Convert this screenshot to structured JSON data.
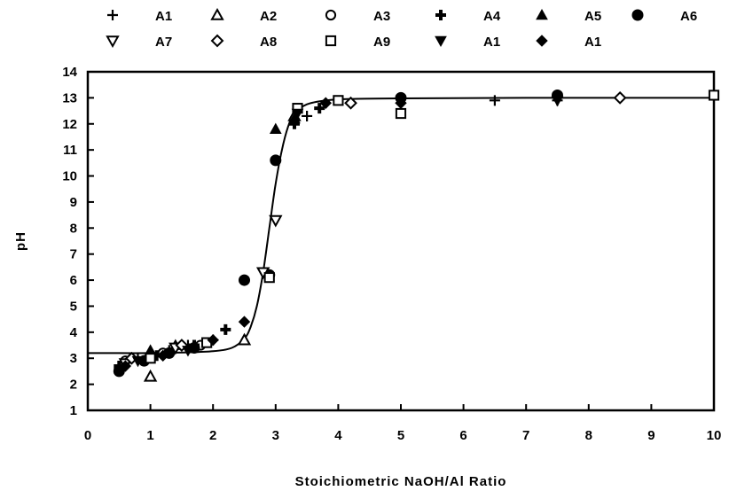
{
  "chart_data": {
    "type": "scatter",
    "title": "",
    "xlabel": "Stoichiometric NaOH/Al Ratio",
    "ylabel": "pH",
    "xlim": [
      0,
      10
    ],
    "ylim": [
      1,
      14
    ],
    "xticks": [
      0,
      1,
      2,
      3,
      4,
      5,
      6,
      7,
      8,
      9,
      10
    ],
    "yticks": [
      1,
      2,
      3,
      4,
      5,
      6,
      7,
      8,
      9,
      10,
      11,
      12,
      13,
      14
    ],
    "grid": false,
    "legend_position": "top",
    "series": [
      {
        "name": "A1",
        "marker": "plus",
        "points": [
          [
            0.5,
            2.6
          ],
          [
            0.8,
            3.0
          ],
          [
            1.0,
            3.1
          ],
          [
            1.3,
            3.3
          ],
          [
            1.6,
            3.5
          ],
          [
            2.0,
            3.7
          ],
          [
            3.5,
            12.3
          ],
          [
            6.5,
            12.9
          ],
          [
            7.5,
            12.9
          ]
        ]
      },
      {
        "name": "A2",
        "marker": "triangle-open",
        "points": [
          [
            1.0,
            2.3
          ],
          [
            2.5,
            3.7
          ],
          [
            3.3,
            12.3
          ]
        ]
      },
      {
        "name": "A3",
        "marker": "circle-open",
        "points": [
          [
            0.6,
            2.9
          ],
          [
            1.2,
            3.2
          ],
          [
            1.8,
            3.5
          ]
        ]
      },
      {
        "name": "A4",
        "marker": "plus-bold",
        "points": [
          [
            0.5,
            2.7
          ],
          [
            1.1,
            3.1
          ],
          [
            1.7,
            3.5
          ],
          [
            2.2,
            4.1
          ],
          [
            3.3,
            12.0
          ],
          [
            3.7,
            12.6
          ]
        ]
      },
      {
        "name": "A5",
        "marker": "triangle-filled",
        "points": [
          [
            1.0,
            3.3
          ],
          [
            1.4,
            3.5
          ],
          [
            3.0,
            11.8
          ],
          [
            3.3,
            12.2
          ]
        ]
      },
      {
        "name": "A6",
        "marker": "circle-filled",
        "points": [
          [
            0.5,
            2.5
          ],
          [
            0.9,
            2.9
          ],
          [
            1.3,
            3.2
          ],
          [
            1.7,
            3.4
          ],
          [
            2.5,
            6.0
          ],
          [
            2.9,
            6.2
          ],
          [
            3.0,
            10.6
          ],
          [
            5.0,
            13.0
          ],
          [
            7.5,
            13.1
          ]
        ]
      },
      {
        "name": "A7",
        "marker": "triangle-down-open",
        "points": [
          [
            0.6,
            2.8
          ],
          [
            1.4,
            3.4
          ],
          [
            2.8,
            6.3
          ],
          [
            3.0,
            8.3
          ]
        ]
      },
      {
        "name": "A8",
        "marker": "diamond-open",
        "points": [
          [
            0.7,
            3.0
          ],
          [
            1.5,
            3.5
          ],
          [
            4.2,
            12.8
          ],
          [
            8.5,
            13.0
          ]
        ]
      },
      {
        "name": "A9",
        "marker": "square-open",
        "points": [
          [
            1.0,
            3.0
          ],
          [
            1.9,
            3.6
          ],
          [
            2.9,
            6.1
          ],
          [
            3.35,
            12.6
          ],
          [
            4.0,
            12.9
          ],
          [
            5.0,
            12.4
          ],
          [
            10.0,
            13.1
          ]
        ]
      },
      {
        "name": "A1",
        "marker": "triangle-down-filled",
        "points": [
          [
            0.8,
            2.9
          ],
          [
            1.6,
            3.3
          ],
          [
            3.35,
            12.4
          ],
          [
            7.5,
            12.9
          ]
        ]
      },
      {
        "name": "A1",
        "marker": "diamond-filled",
        "points": [
          [
            0.6,
            2.7
          ],
          [
            1.2,
            3.1
          ],
          [
            2.0,
            3.7
          ],
          [
            2.5,
            4.4
          ],
          [
            3.8,
            12.8
          ],
          [
            5.0,
            12.8
          ]
        ]
      }
    ],
    "fit_curve": [
      [
        0.0,
        3.2
      ],
      [
        0.5,
        3.2
      ],
      [
        1.0,
        3.2
      ],
      [
        1.5,
        3.22
      ],
      [
        2.0,
        3.27
      ],
      [
        2.3,
        3.4
      ],
      [
        2.5,
        3.75
      ],
      [
        2.6,
        4.2
      ],
      [
        2.7,
        5.0
      ],
      [
        2.8,
        6.3
      ],
      [
        2.9,
        8.0
      ],
      [
        3.0,
        9.7
      ],
      [
        3.1,
        11.0
      ],
      [
        3.2,
        11.9
      ],
      [
        3.3,
        12.4
      ],
      [
        3.5,
        12.75
      ],
      [
        3.8,
        12.9
      ],
      [
        4.2,
        12.96
      ],
      [
        5.0,
        12.98
      ],
      [
        7.0,
        13.0
      ],
      [
        10.0,
        13.0
      ]
    ]
  }
}
